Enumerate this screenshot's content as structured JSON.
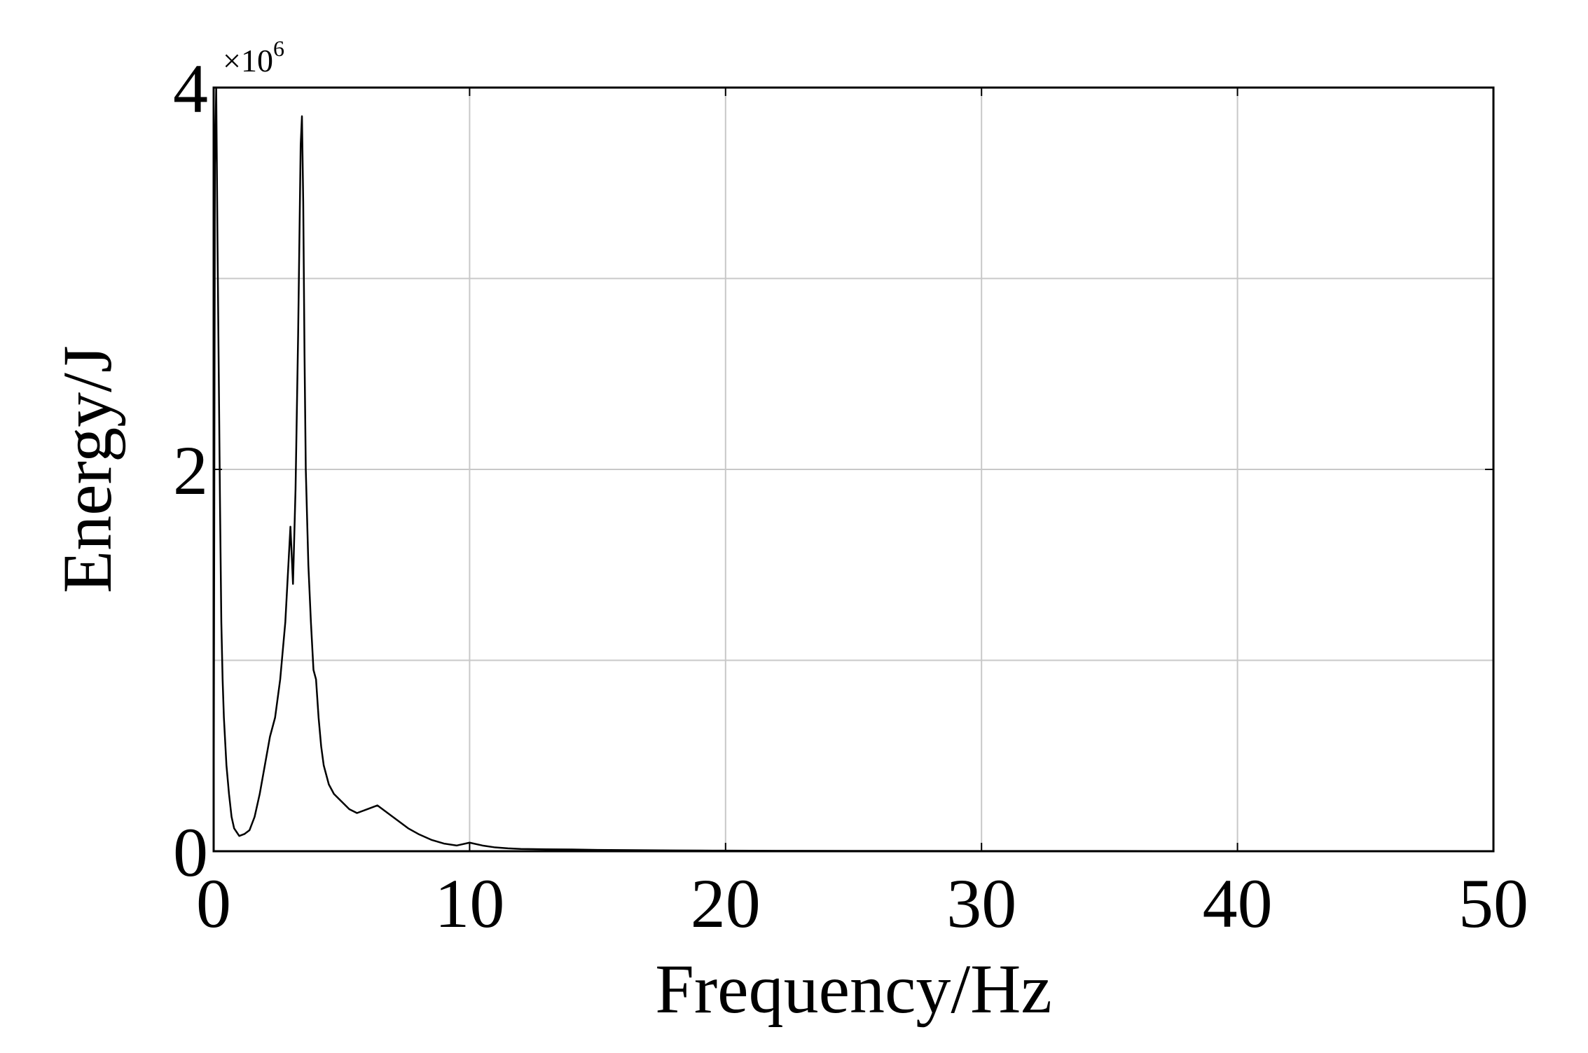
{
  "chart_data": {
    "type": "line",
    "xlabel": "Frequency/Hz",
    "ylabel": "Energy/J",
    "y_multiplier": "×10",
    "y_multiplier_exponent": "6",
    "xlim": [
      0,
      50
    ],
    "ylim": [
      0,
      4000000
    ],
    "x_ticks": [
      0,
      10,
      20,
      30,
      40,
      50
    ],
    "x_tick_labels": [
      "0",
      "10",
      "20",
      "30",
      "40",
      "50"
    ],
    "y_ticks": [
      0,
      2000000,
      4000000
    ],
    "y_tick_labels": [
      "0",
      "2",
      "4"
    ],
    "y_grid": [
      0,
      1000000,
      2000000,
      3000000,
      4000000
    ],
    "grid": true,
    "line_color": "#000000",
    "grid_color": "#c8c8c8",
    "series": [
      {
        "x": [
          0.05,
          0.1,
          0.15,
          0.2,
          0.25,
          0.3,
          0.35,
          0.4,
          0.5,
          0.6,
          0.7,
          0.8,
          0.9,
          1.0,
          1.2,
          1.4,
          1.6,
          1.8,
          2.0,
          2.2,
          2.4,
          2.6,
          2.8,
          3.0,
          3.1,
          3.2,
          3.3,
          3.4,
          3.45,
          3.5,
          3.55,
          3.6,
          3.7,
          3.8,
          3.9,
          4.0,
          4.1,
          4.2,
          4.3,
          4.5,
          4.7,
          5.0,
          5.3,
          5.6,
          6.0,
          6.4,
          6.8,
          7.2,
          7.6,
          8.0,
          8.5,
          9.0,
          9.5,
          10.0,
          10.5,
          11.0,
          11.5,
          12.0,
          13.0,
          14.0,
          15.0,
          16.0,
          17.0,
          18.0,
          19.0,
          20.0,
          22.0,
          25.0,
          30.0,
          35.0,
          40.0,
          45.0,
          50.0
        ],
        "y": [
          3600000,
          4000000,
          3200000,
          2500000,
          1800000,
          1200000,
          900000,
          700000,
          450000,
          300000,
          180000,
          120000,
          100000,
          80000,
          90000,
          110000,
          180000,
          300000,
          450000,
          600000,
          700000,
          900000,
          1200000,
          1700000,
          1400000,
          1900000,
          2700000,
          3700000,
          3850000,
          3400000,
          2600000,
          2000000,
          1500000,
          1200000,
          950000,
          900000,
          700000,
          550000,
          450000,
          350000,
          300000,
          260000,
          220000,
          200000,
          220000,
          240000,
          200000,
          160000,
          120000,
          90000,
          60000,
          40000,
          30000,
          45000,
          30000,
          20000,
          15000,
          12000,
          10000,
          9000,
          7000,
          6000,
          5000,
          4000,
          3500,
          3000,
          2500,
          2000,
          1500,
          1200,
          1000,
          800,
          600
        ]
      }
    ]
  }
}
